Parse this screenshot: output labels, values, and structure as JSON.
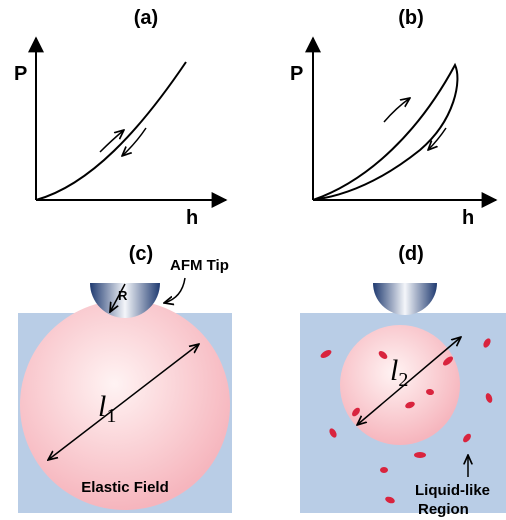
{
  "panels": {
    "a": {
      "label": "(a)",
      "y_axis": "P",
      "x_axis": "h"
    },
    "b": {
      "label": "(b)",
      "y_axis": "P",
      "x_axis": "h"
    },
    "c": {
      "label": "(c)",
      "tip_label": "AFM Tip",
      "radius_label": "R",
      "length_symbol": "l",
      "length_subscript": "1",
      "field_label": "Elastic Field"
    },
    "d": {
      "label": "(d)",
      "length_symbol": "l",
      "length_subscript": "2",
      "region_label": [
        "Liquid-like",
        "Region"
      ]
    }
  }
}
